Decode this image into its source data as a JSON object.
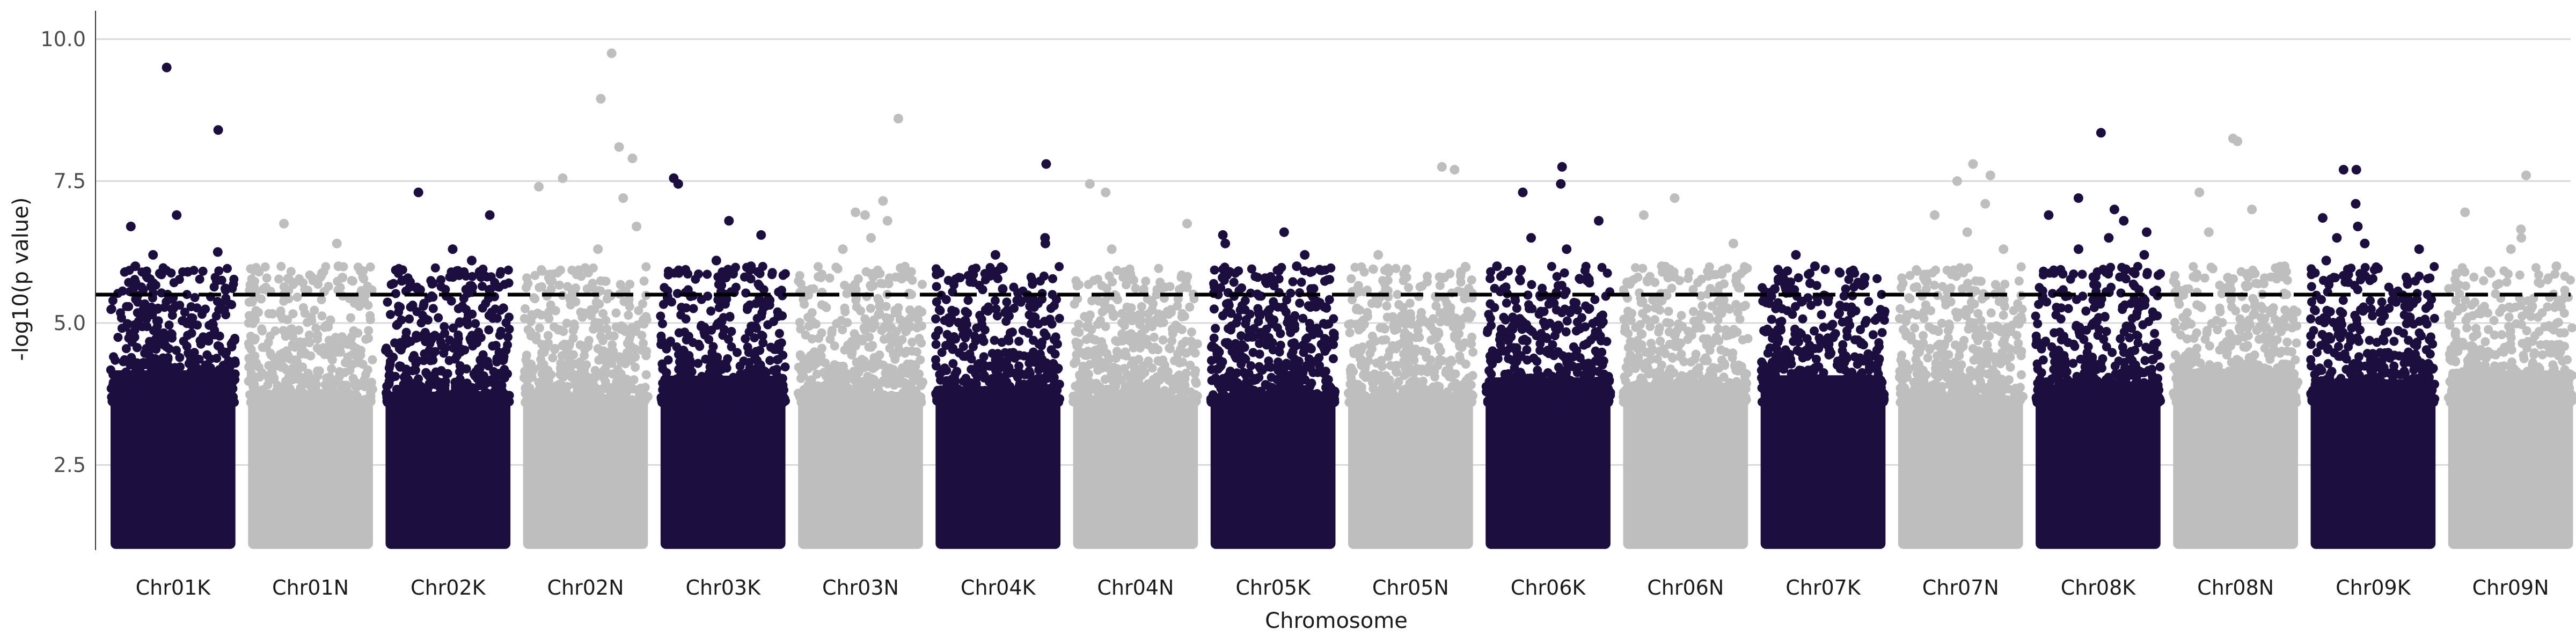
{
  "chart_data": {
    "type": "scatter",
    "title": "",
    "xlabel": "Chromosome",
    "ylabel": "-log10(p value)",
    "ylim": [
      1.0,
      10.5
    ],
    "y_ticks": [
      "2.5",
      "5.0",
      "7.5",
      "10.0"
    ],
    "grid": "horizontal",
    "threshold": 5.5,
    "colors": {
      "dark": "#1c0f40",
      "light": "#bebebe",
      "threshold": "#000000",
      "grid": "#d9d9d9"
    },
    "categories": [
      "Chr01K",
      "Chr01N",
      "Chr02K",
      "Chr02N",
      "Chr03K",
      "Chr03N",
      "Chr04K",
      "Chr04N",
      "Chr05K",
      "Chr05N",
      "Chr06K",
      "Chr06N",
      "Chr07K",
      "Chr07N",
      "Chr08K",
      "Chr08N",
      "Chr09K",
      "Chr09N"
    ],
    "series": [
      {
        "category": "Chr01K",
        "color": "dark",
        "peaks": [
          9.5,
          8.4,
          6.9,
          6.7,
          6.25,
          6.2,
          6.0,
          5.9,
          5.8
        ]
      },
      {
        "category": "Chr01N",
        "color": "light",
        "peaks": [
          6.75,
          6.4,
          6.0,
          5.8,
          5.5
        ]
      },
      {
        "category": "Chr02K",
        "color": "dark",
        "peaks": [
          7.3,
          6.9,
          6.3,
          6.1,
          5.9,
          5.7
        ]
      },
      {
        "category": "Chr02N",
        "color": "light",
        "peaks": [
          9.75,
          8.95,
          8.1,
          7.9,
          7.55,
          7.4,
          7.2,
          6.7,
          6.3
        ]
      },
      {
        "category": "Chr03K",
        "color": "dark",
        "peaks": [
          7.55,
          7.45,
          6.8,
          6.55,
          6.1,
          6.0,
          5.8
        ]
      },
      {
        "category": "Chr03N",
        "color": "light",
        "peaks": [
          8.6,
          7.15,
          6.95,
          6.9,
          6.8,
          6.5,
          6.3
        ]
      },
      {
        "category": "Chr04K",
        "color": "dark",
        "peaks": [
          7.8,
          6.5,
          6.4,
          6.2,
          5.9,
          5.6
        ]
      },
      {
        "category": "Chr04N",
        "color": "light",
        "peaks": [
          7.45,
          7.3,
          6.75,
          6.3,
          5.9,
          5.8
        ]
      },
      {
        "category": "Chr05K",
        "color": "dark",
        "peaks": [
          6.6,
          6.55,
          6.4,
          6.2,
          6.0,
          5.9,
          5.8
        ]
      },
      {
        "category": "Chr05N",
        "color": "light",
        "peaks": [
          7.75,
          7.7,
          6.2,
          5.9,
          5.8
        ]
      },
      {
        "category": "Chr06K",
        "color": "dark",
        "peaks": [
          7.75,
          7.45,
          7.3,
          6.8,
          6.5,
          6.3,
          6.0
        ]
      },
      {
        "category": "Chr06N",
        "color": "light",
        "peaks": [
          7.2,
          6.9,
          6.4,
          6.0,
          5.8
        ]
      },
      {
        "category": "Chr07K",
        "color": "dark",
        "peaks": [
          6.2,
          6.0,
          5.8,
          5.7,
          5.6
        ]
      },
      {
        "category": "Chr07N",
        "color": "light",
        "peaks": [
          7.8,
          7.6,
          7.5,
          7.1,
          6.9,
          6.6,
          6.3
        ]
      },
      {
        "category": "Chr08K",
        "color": "dark",
        "peaks": [
          8.35,
          7.2,
          7.0,
          6.9,
          6.8,
          6.6,
          6.5,
          6.3,
          6.2
        ]
      },
      {
        "category": "Chr08N",
        "color": "light",
        "peaks": [
          8.25,
          8.2,
          7.3,
          7.0,
          6.6,
          6.0,
          5.8
        ]
      },
      {
        "category": "Chr09K",
        "color": "dark",
        "peaks": [
          7.7,
          7.7,
          7.1,
          6.85,
          6.7,
          6.5,
          6.4,
          6.3,
          6.1
        ]
      },
      {
        "category": "Chr09N",
        "color": "light",
        "peaks": [
          7.6,
          6.95,
          6.65,
          6.5,
          6.3,
          6.0
        ]
      }
    ]
  }
}
